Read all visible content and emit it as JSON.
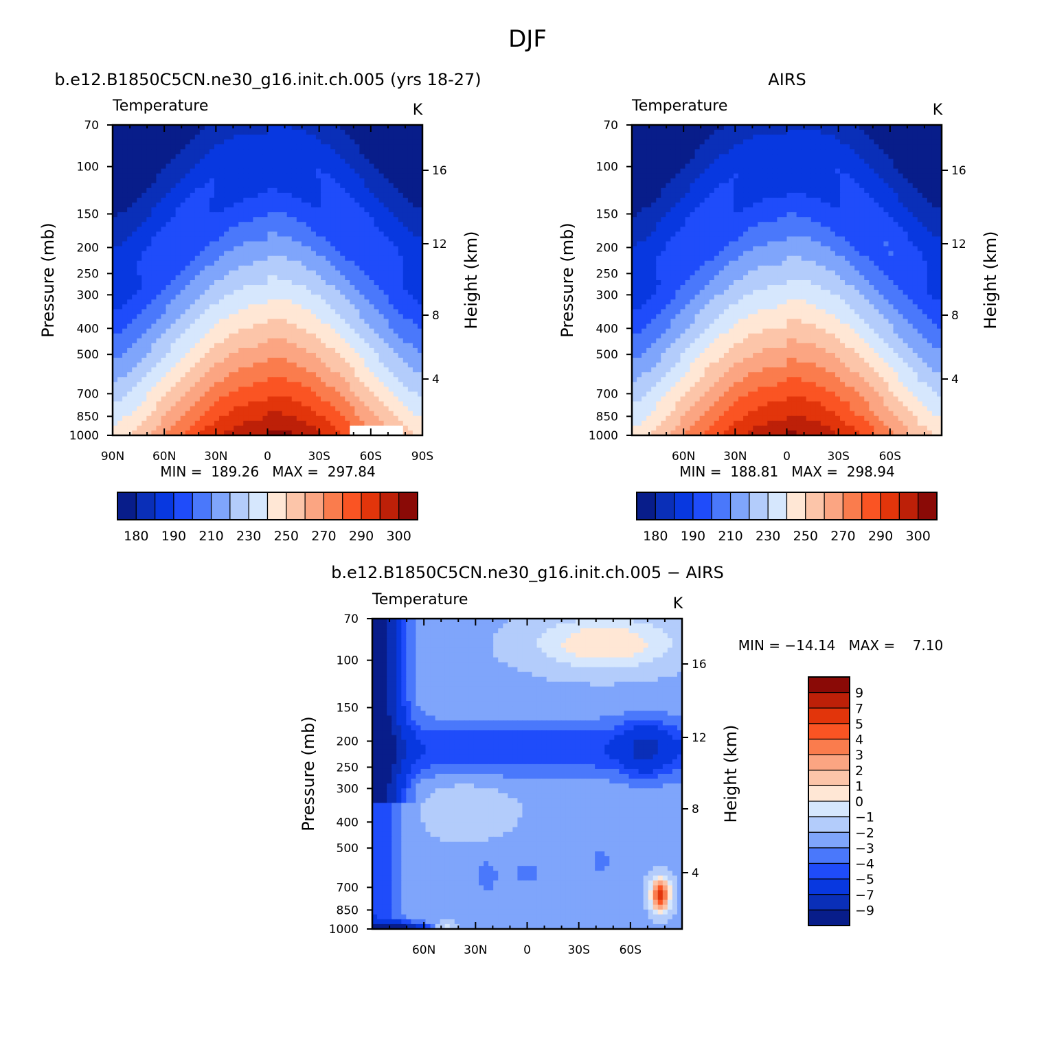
{
  "page_title": "DJF",
  "colors": {
    "temperature_palette": [
      "#081d8a",
      "#0a2fb8",
      "#0838e0",
      "#1f4cfa",
      "#4a78fb",
      "#7fa5fb",
      "#b3ccfb",
      "#d6e7fd",
      "#ffe7d5",
      "#fcc5a9",
      "#fba582",
      "#fa7c4d",
      "#fa5423",
      "#e2350b",
      "#bd2008",
      "#8a0a06"
    ],
    "difference_palette": [
      "#081d8a",
      "#0a2fb8",
      "#0838e0",
      "#1f4cfa",
      "#4a78fb",
      "#7fa5fb",
      "#b3ccfb",
      "#d6e7fd",
      "#ffe7d5",
      "#fcc5a9",
      "#fba582",
      "#fa7c4d",
      "#fa5423",
      "#e2350b",
      "#bd2008",
      "#8a0a06"
    ]
  },
  "chart_data": [
    {
      "type": "heatmap",
      "title": "b.e12.B1850C5CN.ne30_g16.init.ch.005 (yrs 18-27)",
      "left_label": "Temperature",
      "units": "K",
      "ylabel": "Pressure (mb)",
      "ylabel_right": "Height (km)",
      "x_ticks": [
        "90N",
        "60N",
        "30N",
        "0",
        "30S",
        "60S",
        "90S"
      ],
      "y_ticks": [
        "70",
        "100",
        "150",
        "200",
        "250",
        "300",
        "400",
        "500",
        "700",
        "850",
        "1000"
      ],
      "y_ticks_right": [
        "16",
        "12",
        "8",
        "4"
      ],
      "log_pressure_axis": true,
      "stats": "MIN =  189.26   MAX =  297.84",
      "colorbar_labels": [
        "180",
        "190",
        "210",
        "230",
        "250",
        "270",
        "290",
        "300"
      ],
      "field": "model_temperature"
    },
    {
      "type": "heatmap",
      "title": "AIRS",
      "left_label": "Temperature",
      "units": "K",
      "ylabel": "Pressure (mb)",
      "ylabel_right": "Height (km)",
      "x_ticks": [
        "60N",
        "30N",
        "0",
        "30S",
        "60S"
      ],
      "y_ticks": [
        "70",
        "100",
        "150",
        "200",
        "250",
        "300",
        "400",
        "500",
        "700",
        "850",
        "1000"
      ],
      "y_ticks_right": [
        "16",
        "12",
        "8",
        "4"
      ],
      "log_pressure_axis": true,
      "stats": "MIN =  188.81   MAX =  298.94",
      "colorbar_labels": [
        "180",
        "190",
        "210",
        "230",
        "250",
        "270",
        "290",
        "300"
      ],
      "field": "airs_temperature"
    },
    {
      "type": "heatmap",
      "title": "b.e12.B1850C5CN.ne30_g16.init.ch.005 − AIRS",
      "left_label": "Temperature",
      "units": "K",
      "ylabel": "Pressure (mb)",
      "ylabel_right": "Height (km)",
      "x_ticks": [
        "60N",
        "30N",
        "0",
        "30S",
        "60S"
      ],
      "y_ticks": [
        "70",
        "100",
        "150",
        "200",
        "250",
        "300",
        "400",
        "500",
        "700",
        "850",
        "1000"
      ],
      "y_ticks_right": [
        "16",
        "12",
        "8",
        "4"
      ],
      "log_pressure_axis": true,
      "stats": "MIN = −14.14   MAX =    7.10",
      "colorbar_labels": [
        "9",
        "7",
        "5",
        "4",
        "3",
        "2",
        "1",
        "0",
        "−1",
        "−2",
        "−3",
        "−4",
        "−5",
        "−7",
        "−9"
      ],
      "field": "difference"
    }
  ]
}
